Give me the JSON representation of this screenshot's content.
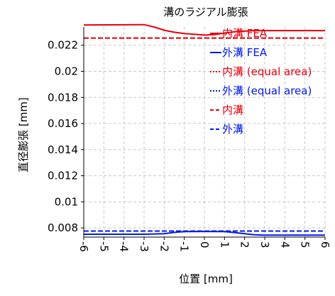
{
  "chart_data": {
    "type": "line",
    "title": "溝のラジアル膨張",
    "xlabel": "位置 [mm]",
    "ylabel": "直径膨張 [mm]",
    "xlim": [
      -6,
      6
    ],
    "ylim": [
      0.0073,
      0.0234
    ],
    "xticks": [
      -6,
      -5,
      -4,
      -3,
      -2,
      -1,
      0,
      1,
      2,
      3,
      4,
      5,
      6
    ],
    "yticks": [
      0.008,
      0.01,
      0.012,
      0.014,
      0.016,
      0.018,
      0.02,
      0.022
    ],
    "ytick_labels": [
      "0.008",
      "0.01",
      "0.012",
      "0.014",
      "0.016",
      "0.018",
      "0.02",
      "0.022"
    ],
    "grid": true,
    "legend_position": "top-right",
    "series": [
      {
        "name": "内溝 FEA",
        "color": "#e8000b",
        "dash": "solid",
        "x": [
          -6,
          -3,
          -2.5,
          -2,
          -1.5,
          -1,
          0,
          0.5,
          1,
          1.5,
          2,
          2.5,
          3,
          6
        ],
        "y": [
          0.02355,
          0.02358,
          0.0234,
          0.02315,
          0.023,
          0.0229,
          0.02278,
          0.02282,
          0.02293,
          0.02303,
          0.02308,
          0.02312,
          0.02312,
          0.02312
        ]
      },
      {
        "name": "外溝 FEA",
        "color": "#0019e8",
        "dash": "solid",
        "x": [
          -6,
          -3,
          -2,
          -1.5,
          -1,
          0,
          1,
          1.5,
          2,
          2.5,
          3,
          6
        ],
        "y": [
          0.00752,
          0.00752,
          0.00756,
          0.00766,
          0.00772,
          0.00773,
          0.00772,
          0.00765,
          0.00756,
          0.00748,
          0.00745,
          0.00745
        ]
      },
      {
        "name": "内溝 (equal area)",
        "color": "#e8000b",
        "dash": "dotted",
        "x": [
          -6,
          6
        ],
        "y": [
          0.02255,
          0.02255
        ]
      },
      {
        "name": "外溝 (equal area)",
        "color": "#0019e8",
        "dash": "dotted",
        "x": [
          -6,
          6
        ],
        "y": [
          0.00776,
          0.00776
        ]
      },
      {
        "name": "内溝",
        "color": "#e8000b",
        "dash": "dashed",
        "x": [
          -6,
          6
        ],
        "y": [
          0.02255,
          0.02255
        ]
      },
      {
        "name": "外溝",
        "color": "#0019e8",
        "dash": "dashed",
        "x": [
          -6,
          6
        ],
        "y": [
          0.00776,
          0.00776
        ]
      }
    ]
  }
}
